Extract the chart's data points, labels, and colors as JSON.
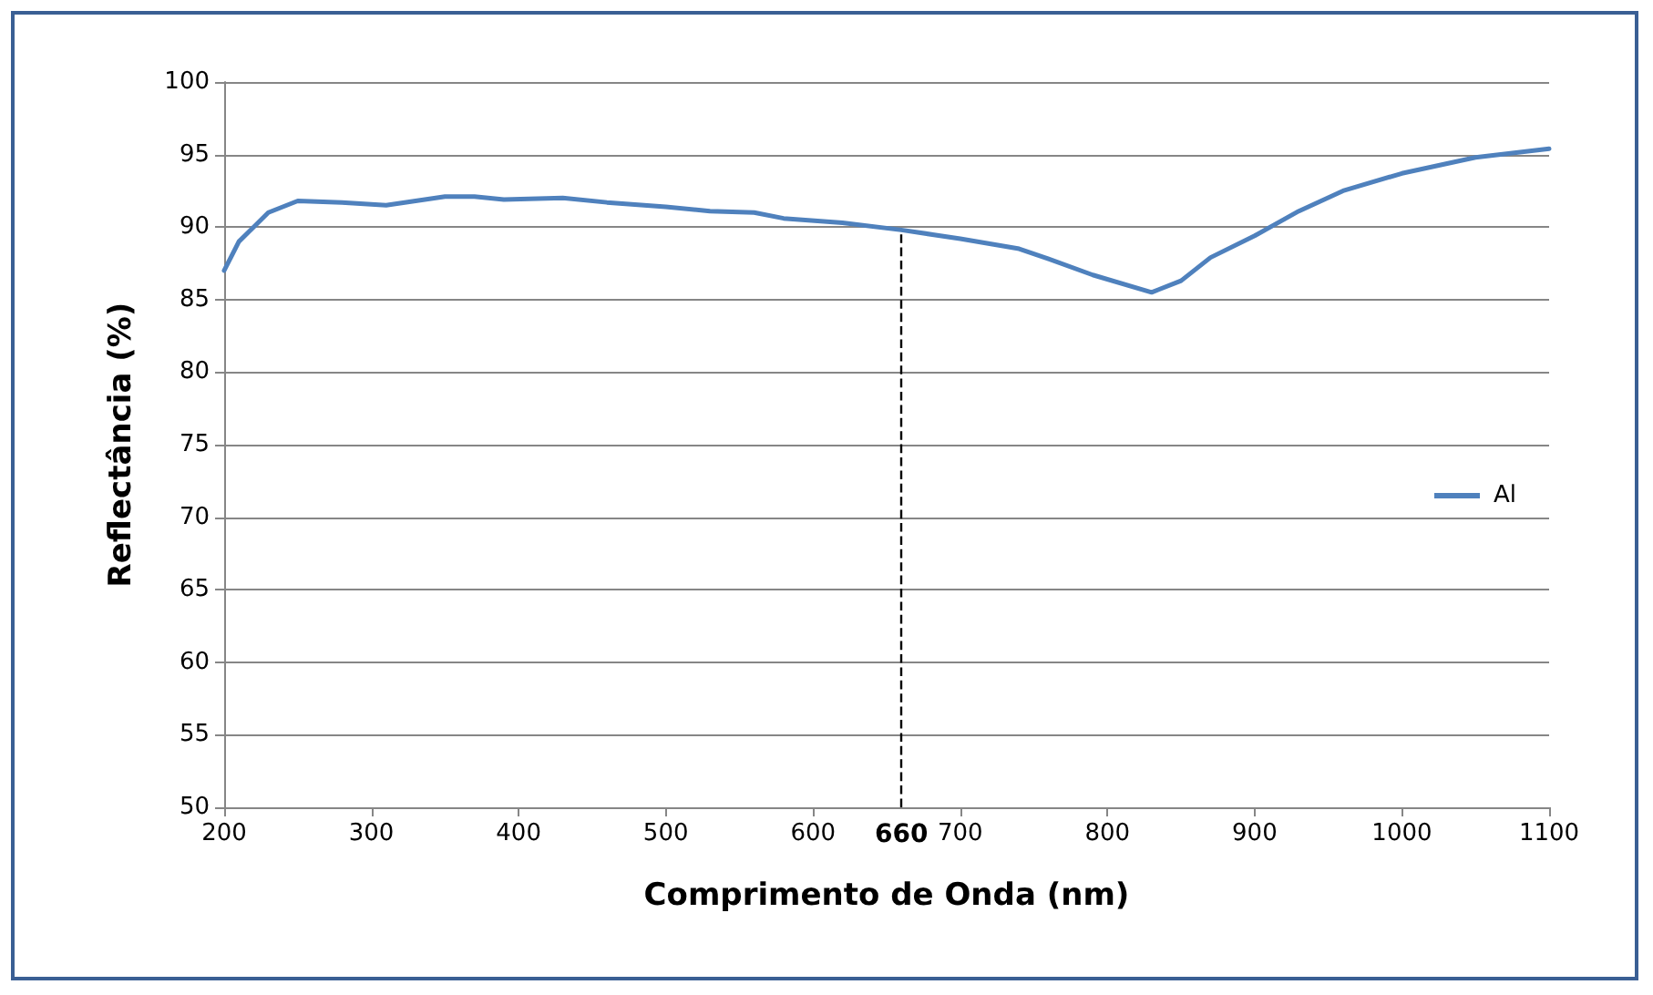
{
  "chart_data": {
    "type": "line",
    "xlabel": "Comprimento de Onda (nm)",
    "ylabel": "Reflectância (%)",
    "series": [
      {
        "name": "Al",
        "color": "#4f81bd",
        "x": [
          200,
          210,
          220,
          230,
          250,
          280,
          310,
          330,
          350,
          370,
          390,
          430,
          460,
          500,
          530,
          560,
          580,
          620,
          660,
          700,
          740,
          760,
          790,
          830,
          850,
          870,
          900,
          930,
          960,
          1000,
          1050,
          1100
        ],
        "values": [
          87.0,
          89.0,
          90.0,
          91.0,
          91.8,
          91.7,
          91.5,
          91.8,
          92.1,
          92.1,
          91.9,
          92.0,
          91.7,
          91.4,
          91.1,
          91.0,
          90.6,
          90.3,
          89.8,
          89.2,
          88.5,
          87.8,
          86.7,
          85.5,
          86.3,
          87.9,
          89.4,
          91.1,
          92.5,
          93.7,
          94.8,
          95.4
        ]
      }
    ],
    "xlim": [
      200,
      1100
    ],
    "xticks": [
      200,
      300,
      400,
      500,
      600,
      700,
      800,
      900,
      1000,
      1100
    ],
    "ylim": [
      50,
      100
    ],
    "yticks": [
      50,
      55,
      60,
      65,
      70,
      75,
      80,
      85,
      90,
      95,
      100
    ],
    "grid": "y",
    "legend": "right",
    "marker": "none",
    "line_style": "solid",
    "ref_lines": [
      {
        "axis": "x",
        "value": 660,
        "label": "660",
        "line_style": "dashed",
        "color": "#000000"
      }
    ]
  }
}
